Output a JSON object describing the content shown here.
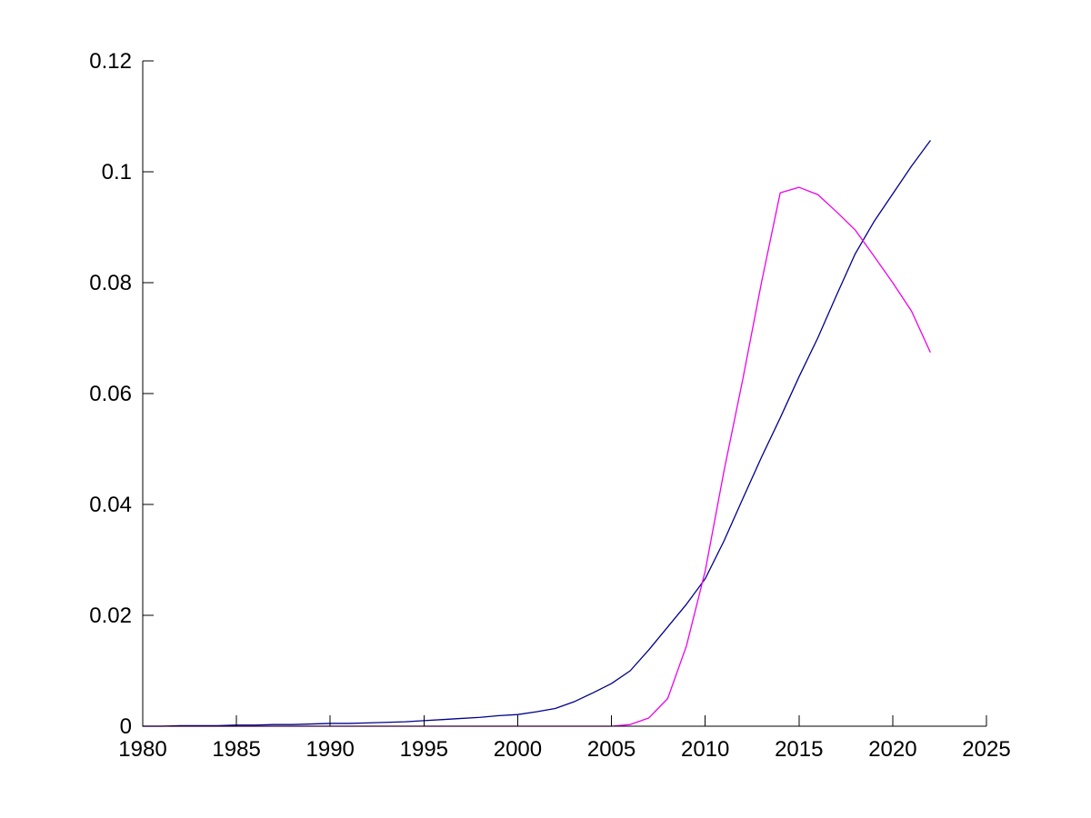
{
  "figure": {
    "background_color": "#ffffff",
    "axis_color": "#000000",
    "tick_label_color": "#000000"
  },
  "chart_data": {
    "type": "line",
    "title": "",
    "xlabel": "",
    "ylabel": "",
    "grid": false,
    "legend": null,
    "box": false,
    "xlim": [
      1980,
      2025
    ],
    "ylim": [
      0,
      0.12
    ],
    "xticks": [
      1980,
      1985,
      1990,
      1995,
      2000,
      2005,
      2010,
      2015,
      2020,
      2025
    ],
    "xtick_labels": [
      "1980",
      "1985",
      "1990",
      "1995",
      "2000",
      "2005",
      "2010",
      "2015",
      "2020",
      "2025"
    ],
    "yticks": [
      0,
      0.02,
      0.04,
      0.06,
      0.08,
      0.1,
      0.12
    ],
    "ytick_labels": [
      "0",
      "0.02",
      "0.04",
      "0.06",
      "0.08",
      "0.1",
      "0.12"
    ],
    "x": [
      1980,
      1981,
      1982,
      1983,
      1984,
      1985,
      1986,
      1987,
      1988,
      1989,
      1990,
      1991,
      1992,
      1993,
      1994,
      1995,
      1996,
      1997,
      1998,
      1999,
      2000,
      2001,
      2002,
      2003,
      2004,
      2005,
      2006,
      2007,
      2008,
      2009,
      2010,
      2011,
      2012,
      2013,
      2014,
      2015,
      2016,
      2017,
      2018,
      2019,
      2020,
      2021,
      2022
    ],
    "series": [
      {
        "name": "dark-blue-line",
        "color": "#00008B",
        "values": [
          0.0,
          0.0,
          0.0001,
          0.0001,
          0.0001,
          0.0002,
          0.0002,
          0.0003,
          0.0003,
          0.0004,
          0.0005,
          0.0005,
          0.0006,
          0.0007,
          0.0008,
          0.001,
          0.0012,
          0.0014,
          0.0016,
          0.0019,
          0.0021,
          0.0026,
          0.0032,
          0.0044,
          0.006,
          0.0077,
          0.01,
          0.0138,
          0.0179,
          0.022,
          0.0266,
          0.0334,
          0.041,
          0.0485,
          0.0556,
          0.063,
          0.07,
          0.0777,
          0.0852,
          0.091,
          0.096,
          0.101,
          0.1056
        ]
      },
      {
        "name": "magenta-line",
        "color": "#EE00EE",
        "values": [
          0.0,
          0.0,
          0.0,
          0.0,
          0.0,
          0.0,
          0.0,
          0.0,
          0.0,
          0.0,
          0.0,
          0.0,
          0.0,
          0.0,
          0.0,
          0.0,
          0.0,
          0.0,
          0.0,
          0.0,
          0.0,
          0.0,
          0.0,
          0.0,
          0.0,
          0.0,
          0.0003,
          0.0015,
          0.005,
          0.0145,
          0.028,
          0.046,
          0.0625,
          0.08,
          0.0962,
          0.0972,
          0.0959,
          0.0928,
          0.0895,
          0.0848,
          0.08,
          0.0749,
          0.0675
        ]
      }
    ]
  }
}
